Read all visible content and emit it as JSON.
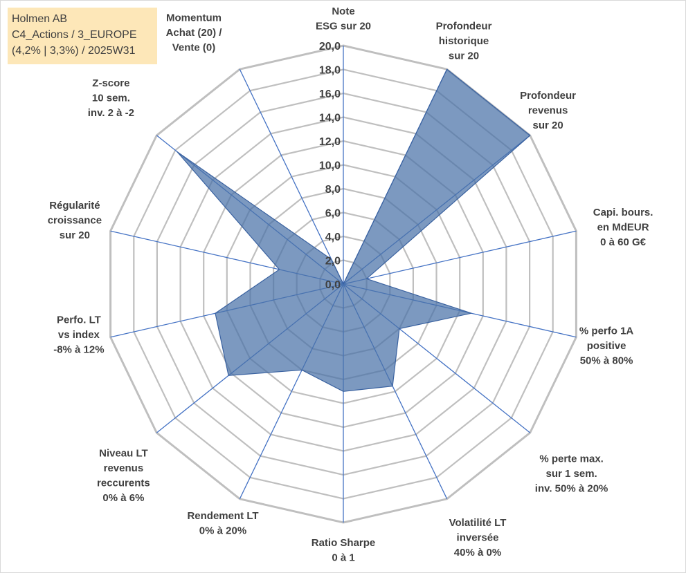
{
  "header": {
    "lines": [
      "Holmen AB",
      "C4_Actions / 3_EUROPE",
      "(4,2% | 3,3%) / 2025W31"
    ]
  },
  "colors": {
    "grid": "#bfbfbf",
    "spoke": "#4472c4",
    "fill": "#4a72a8",
    "text": "#404040",
    "title_bg": "#fde7b8"
  },
  "chart_data": {
    "type": "radar",
    "r_range": [
      0,
      20
    ],
    "r_ticks": [
      "0,0",
      "2,0",
      "4,0",
      "6,0",
      "8,0",
      "10,0",
      "12,0",
      "14,0",
      "16,0",
      "18,0",
      "20,0"
    ],
    "axes": [
      {
        "label": [
          "Note",
          "ESG sur 20"
        ]
      },
      {
        "label": [
          "Profondeur",
          "historique",
          "sur 20"
        ]
      },
      {
        "label": [
          "Profondeur",
          "revenus",
          "sur 20"
        ]
      },
      {
        "label": [
          "Capi. bours.",
          "en MdEUR",
          "0 à 60 G€"
        ]
      },
      {
        "label": [
          "% perfo 1A",
          "positive",
          "50% à 80%"
        ]
      },
      {
        "label": [
          "% perte max.",
          "sur 1 sem.",
          "inv. 50% à 20%"
        ]
      },
      {
        "label": [
          "Volatilité LT",
          "inversée",
          "40% à 0%"
        ]
      },
      {
        "label": [
          "Ratio Sharpe",
          "0 à 1"
        ]
      },
      {
        "label": [
          "Rendement LT",
          "0% à 20%"
        ]
      },
      {
        "label": [
          "Niveau LT",
          "revenus",
          "reccurents",
          "0% à 6%"
        ]
      },
      {
        "label": [
          "Perfo. LT",
          "vs index",
          "-8% à 12%"
        ]
      },
      {
        "label": [
          "Régularité",
          "croissance",
          "sur 20"
        ]
      },
      {
        "label": [
          "Z-score",
          "10 sem.",
          "inv. 2 à -2"
        ]
      },
      {
        "label": [
          "Momentum",
          "Achat (20) /",
          "Vente (0)"
        ]
      }
    ],
    "values": [
      0,
      20,
      20,
      2,
      11,
      6,
      9.5,
      9,
      8,
      12.3,
      11,
      5.5,
      17.8,
      2.3
    ],
    "grid": true,
    "legend": "none"
  }
}
